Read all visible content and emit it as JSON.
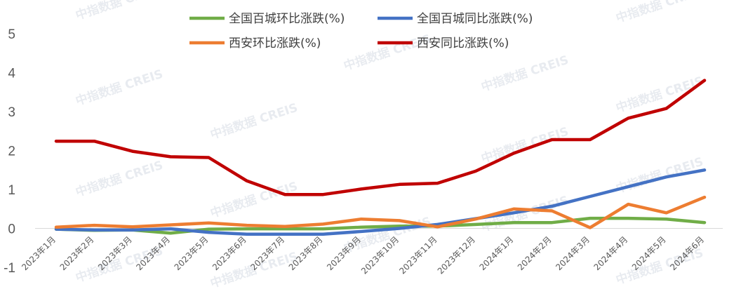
{
  "chart_data": {
    "type": "line",
    "title": "",
    "xlabel": "",
    "ylabel": "",
    "ylim": [
      -1,
      5
    ],
    "yticks": [
      -1,
      0,
      1,
      2,
      3,
      4,
      5
    ],
    "grid": false,
    "legend_position": "top",
    "categories": [
      "2023年1月",
      "2023年2月",
      "2023年3月",
      "2023年4月",
      "2023年5月",
      "2023年6月",
      "2023年7月",
      "2023年8月",
      "2023年9月",
      "2023年10月",
      "2023年11月",
      "2023年12月",
      "2024年1月",
      "2024年2月",
      "2024年3月",
      "2024年4月",
      "2024年5月",
      "2024年6月"
    ],
    "series": [
      {
        "name": "全国百城环比涨跌(%)",
        "color": "#70ad47",
        "values": [
          -0.02,
          -0.05,
          -0.04,
          -0.12,
          -0.02,
          -0.01,
          -0.01,
          -0.01,
          0.03,
          0.06,
          0.06,
          0.1,
          0.15,
          0.15,
          0.26,
          0.26,
          0.24,
          0.15
        ]
      },
      {
        "name": "全国百城同比涨跌(%)",
        "color": "#4472c4",
        "values": [
          -0.02,
          -0.04,
          -0.04,
          -0.01,
          -0.1,
          -0.15,
          -0.15,
          -0.15,
          -0.08,
          0.0,
          0.1,
          0.25,
          0.4,
          0.57,
          0.82,
          1.07,
          1.32,
          1.5
        ]
      },
      {
        "name": "西安环比涨跌(%)",
        "color": "#ed7d31",
        "values": [
          0.03,
          0.08,
          0.04,
          0.09,
          0.14,
          0.08,
          0.05,
          0.11,
          0.24,
          0.2,
          0.04,
          0.24,
          0.5,
          0.45,
          0.02,
          0.62,
          0.4,
          0.8
        ]
      },
      {
        "name": "西安同比涨跌(%)",
        "color": "#c00000",
        "values": [
          2.24,
          2.24,
          1.98,
          1.84,
          1.82,
          1.22,
          0.87,
          0.87,
          1.01,
          1.13,
          1.16,
          1.47,
          1.93,
          2.28,
          2.28,
          2.83,
          3.08,
          3.8
        ]
      }
    ]
  },
  "watermark": {
    "text": "中指数据 CREIS",
    "color": "#d6dce4"
  }
}
